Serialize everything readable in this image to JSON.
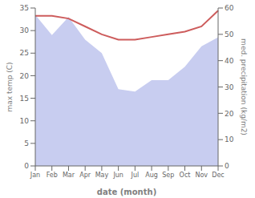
{
  "chart_data": {
    "type": "area",
    "categories": [
      "Jan",
      "Feb",
      "Mar",
      "Apr",
      "May",
      "Jun",
      "Jul",
      "Aug",
      "Sep",
      "Oct",
      "Nov",
      "Dec"
    ],
    "xlabel": "date (month)",
    "ylabel": "max temp (C)",
    "y2label": "med. precipitation (kg/m2)",
    "series": [
      {
        "type": "area",
        "color": "#c8cdf0",
        "values": [
          33.5,
          29.0,
          33.0,
          28.0,
          25.0,
          17.0,
          16.5,
          19.0,
          19.0,
          22.0,
          26.5,
          28.5
        ]
      },
      {
        "type": "line",
        "color": "#cd5c5c",
        "axis": "y2",
        "values": [
          57,
          57,
          56,
          53,
          50,
          48,
          48,
          49,
          50,
          51,
          53,
          59
        ]
      }
    ],
    "ylim": [
      0,
      35
    ],
    "yticks": [
      0,
      5,
      10,
      15,
      20,
      25,
      30,
      35
    ],
    "y2lim": [
      0,
      60
    ],
    "y2ticks": [
      0,
      10,
      20,
      30,
      40,
      50,
      60
    ],
    "grid": false
  }
}
